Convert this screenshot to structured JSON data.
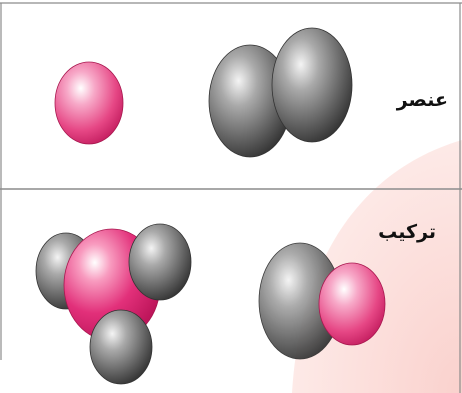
{
  "panels": {
    "element": {
      "label": "عنصر",
      "atoms": [
        {
          "kind": "pink-atom"
        },
        {
          "kind": "gray-atom"
        },
        {
          "kind": "gray-atom"
        }
      ]
    },
    "compound": {
      "label": "ترکیب",
      "molecules": [
        {
          "kind": "gray-gray-pink-cluster"
        },
        {
          "kind": "gray-pink-pair"
        }
      ]
    }
  },
  "colors": {
    "frame_border": "#777777",
    "divider": "#8a8a8a",
    "pink_atom": "#e4447f",
    "gray_atom": "#5a5a5a",
    "background_arc": "#fbd9d6"
  }
}
